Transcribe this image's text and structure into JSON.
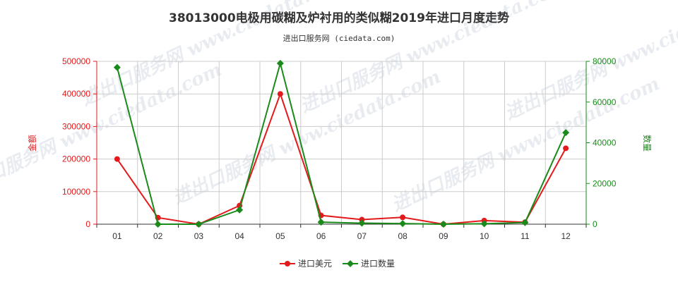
{
  "title": "38013000电极用碳糊及炉衬用的类似糊2019年进口月度走势",
  "subtitle": "进出口服务网 (ciedata.com)",
  "watermark_text": "进出口服务网 www.ciedata.com",
  "colors": {
    "amount": "#e31a1c",
    "quantity": "#1a8a1a",
    "grid": "#cccccc",
    "axis": "#333333"
  },
  "chart_data": {
    "type": "line",
    "categories": [
      "01",
      "02",
      "03",
      "04",
      "05",
      "06",
      "07",
      "08",
      "09",
      "10",
      "11",
      "12"
    ],
    "series": [
      {
        "name": "进口美元",
        "axis": "left",
        "color": "#e31a1c",
        "marker": "circle",
        "values": [
          200000,
          20000,
          0,
          57000,
          400000,
          27000,
          14000,
          21000,
          0,
          11000,
          6000,
          233000
        ]
      },
      {
        "name": "进口数量",
        "axis": "right",
        "color": "#1a8a1a",
        "marker": "diamond",
        "values": [
          77000,
          0,
          0,
          7000,
          79000,
          1000,
          500,
          300,
          0,
          200,
          800,
          45000
        ]
      }
    ],
    "y_left": {
      "label": "金额",
      "ylim": [
        0,
        500000
      ],
      "ticks": [
        0,
        100000,
        200000,
        300000,
        400000,
        500000
      ]
    },
    "y_right": {
      "label": "数量",
      "ylim": [
        0,
        80000
      ],
      "ticks": [
        0,
        20000,
        40000,
        60000,
        80000
      ]
    },
    "grid": true,
    "legend_position": "bottom-center"
  }
}
